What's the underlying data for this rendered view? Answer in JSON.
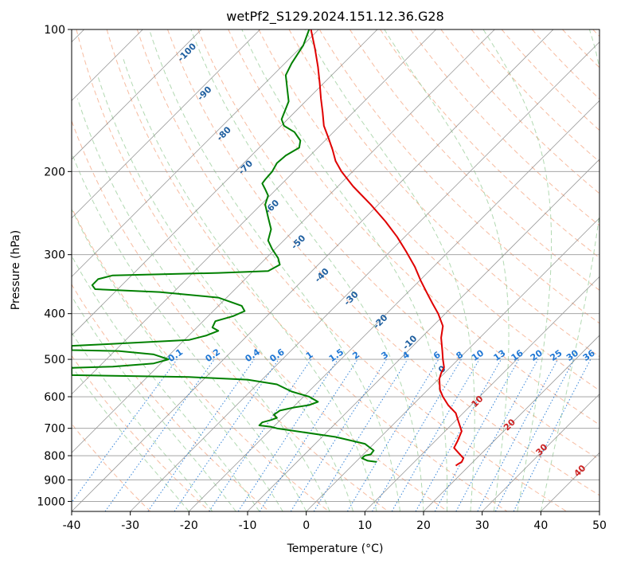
{
  "chart_data": {
    "type": "line",
    "title": "wetPf2_S129.2024.151.12.36.G28",
    "xlabel": "Temperature (°C)",
    "ylabel": "Pressure (hPa)",
    "xlim": [
      -40,
      50
    ],
    "ylim": [
      1050,
      100
    ],
    "y_scale": "log",
    "grid": true,
    "x_ticks": [
      -40,
      -30,
      -20,
      -10,
      0,
      10,
      20,
      30,
      40,
      50
    ],
    "y_ticks": [
      100,
      200,
      300,
      400,
      500,
      600,
      700,
      800,
      900,
      1000
    ],
    "colors": {
      "temperature": "#e00000",
      "dewpoint": "#008000",
      "dry_adiabats": "#f4a582",
      "moist_adiabats": "#7fbf7f",
      "mixing_ratio": "#1f77d4",
      "isotherms": "#808080",
      "iso_labels": "#1f5f9f",
      "iso_labels_warm": "#cc2222"
    },
    "series": [
      {
        "values_key": "temperature",
        "points": [
          [
            0.8,
            100
          ],
          [
            1.5,
            110
          ],
          [
            2.0,
            120
          ],
          [
            2.3,
            130
          ],
          [
            2.5,
            140
          ],
          [
            2.8,
            150
          ],
          [
            3.0,
            160
          ],
          [
            3.8,
            170
          ],
          [
            4.5,
            180
          ],
          [
            5.0,
            190
          ],
          [
            6.0,
            200
          ],
          [
            8.0,
            215
          ],
          [
            11.0,
            235
          ],
          [
            13.5,
            255
          ],
          [
            15.5,
            275
          ],
          [
            17.0,
            295
          ],
          [
            18.5,
            318
          ],
          [
            19.5,
            340
          ],
          [
            20.5,
            360
          ],
          [
            21.5,
            380
          ],
          [
            22.5,
            400
          ],
          [
            23.3,
            425
          ],
          [
            23.0,
            450
          ],
          [
            23.2,
            480
          ],
          [
            23.3,
            500
          ],
          [
            23.5,
            520
          ],
          [
            23.0,
            535
          ],
          [
            22.7,
            550
          ],
          [
            22.8,
            580
          ],
          [
            23.3,
            600
          ],
          [
            24.2,
            625
          ],
          [
            25.5,
            650
          ],
          [
            26.0,
            680
          ],
          [
            26.5,
            710
          ],
          [
            25.8,
            745
          ],
          [
            25.2,
            770
          ],
          [
            26.0,
            790
          ],
          [
            26.8,
            810
          ],
          [
            26.5,
            825
          ],
          [
            25.8,
            835
          ],
          [
            25.5,
            840
          ]
        ]
      },
      {
        "values_key": "dewpoint",
        "points": [
          [
            0.5,
            100
          ],
          [
            -0.5,
            108
          ],
          [
            -2.5,
            118
          ],
          [
            -3.5,
            125
          ],
          [
            -3.2,
            135
          ],
          [
            -3.0,
            142
          ],
          [
            -4.2,
            155
          ],
          [
            -3.8,
            160
          ],
          [
            -2.0,
            165
          ],
          [
            -1.0,
            172
          ],
          [
            -1.2,
            178
          ],
          [
            -3.5,
            185
          ],
          [
            -5.0,
            192
          ],
          [
            -5.8,
            200
          ],
          [
            -7.0,
            208
          ],
          [
            -7.5,
            212
          ],
          [
            -7.0,
            218
          ],
          [
            -6.5,
            225
          ],
          [
            -7.0,
            235
          ],
          [
            -6.5,
            250
          ],
          [
            -6.0,
            265
          ],
          [
            -6.5,
            280
          ],
          [
            -5.8,
            292
          ],
          [
            -4.8,
            305
          ],
          [
            -4.5,
            315
          ],
          [
            -6.5,
            325
          ],
          [
            -15.0,
            328
          ],
          [
            -33.0,
            332
          ],
          [
            -35.5,
            338
          ],
          [
            -36.5,
            348
          ],
          [
            -36.0,
            355
          ],
          [
            -25.0,
            360
          ],
          [
            -15.0,
            370
          ],
          [
            -11.0,
            385
          ],
          [
            -10.5,
            395
          ],
          [
            -12.5,
            405
          ],
          [
            -15.5,
            415
          ],
          [
            -16.0,
            428
          ],
          [
            -15.0,
            435
          ],
          [
            -17.0,
            445
          ],
          [
            -20.0,
            455
          ],
          [
            -35.0,
            465
          ],
          [
            -40.0,
            468
          ],
          [
            -40.0,
            478
          ],
          [
            -32.0,
            480
          ],
          [
            -26.0,
            488
          ],
          [
            -23.5,
            500
          ],
          [
            -26.0,
            510
          ],
          [
            -33.0,
            518
          ],
          [
            -40.0,
            521
          ],
          [
            -40.0,
            540
          ],
          [
            -20.0,
            545
          ],
          [
            -10.0,
            552
          ],
          [
            -5.0,
            565
          ],
          [
            -2.5,
            585
          ],
          [
            0.5,
            600
          ],
          [
            2.0,
            615
          ],
          [
            0.5,
            625
          ],
          [
            -2.0,
            632
          ],
          [
            -4.5,
            642
          ],
          [
            -5.5,
            655
          ],
          [
            -5.0,
            665
          ],
          [
            -6.0,
            672
          ],
          [
            -7.5,
            680
          ],
          [
            -8.0,
            690
          ],
          [
            -6.0,
            695
          ],
          [
            -5.0,
            700
          ],
          [
            5.0,
            730
          ],
          [
            10.0,
            755
          ],
          [
            11.5,
            780
          ],
          [
            11.0,
            795
          ],
          [
            10.0,
            800
          ],
          [
            9.5,
            810
          ],
          [
            10.5,
            820
          ],
          [
            12.0,
            825
          ]
        ]
      }
    ],
    "mixing_ratio_labels": [
      "0.1",
      "0.2",
      "0.4",
      "0.6",
      "1",
      "1.5",
      "2",
      "3",
      "4",
      "6",
      "8",
      "10",
      "13",
      "16",
      "20",
      "25",
      "30",
      "36"
    ],
    "mixing_ratio_values": [
      0.1,
      0.2,
      0.4,
      0.6,
      1,
      1.5,
      2,
      3,
      4,
      6,
      8,
      10,
      13,
      16,
      20,
      25,
      30,
      36
    ],
    "iso_labels": [
      {
        "text": "-100",
        "x": -20.0,
        "p": 113
      },
      {
        "text": "-90",
        "x": -17.0,
        "p": 138
      },
      {
        "text": "-80",
        "x": -13.7,
        "p": 168
      },
      {
        "text": "-70",
        "x": -10.0,
        "p": 198
      },
      {
        "text": "-60",
        "x": -5.5,
        "p": 240
      },
      {
        "text": "-50",
        "x": -1.0,
        "p": 285
      },
      {
        "text": "-40",
        "x": 3.0,
        "p": 335
      },
      {
        "text": "-30",
        "x": 8.0,
        "p": 375
      },
      {
        "text": "-20",
        "x": 13.0,
        "p": 420
      },
      {
        "text": "-10",
        "x": 18.0,
        "p": 465
      },
      {
        "text": "0",
        "x": 23.5,
        "p": 530
      },
      {
        "text": "10",
        "x": 29.5,
        "p": 620
      },
      {
        "text": "20",
        "x": 35.0,
        "p": 695
      },
      {
        "text": "30",
        "x": 40.5,
        "p": 785
      },
      {
        "text": "40",
        "x": 47.0,
        "p": 870
      }
    ]
  }
}
